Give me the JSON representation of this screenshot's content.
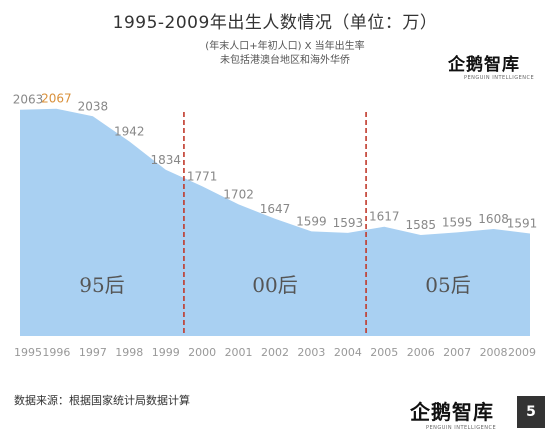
{
  "title": "1995-2009年出生人数情况（单位：万）",
  "subtitle_lines": [
    "(年末人口+年初人口) X 当年出生率",
    "未包括港澳台地区和海外华侨"
  ],
  "logo": {
    "text": "企鹅智库",
    "sub": "PENGUIN INTELLIGENCE"
  },
  "source": "数据来源：根据国家统计局数据计算",
  "page_number": "5",
  "colors": {
    "area": "#a9d0f2",
    "divider": "#c0392b",
    "label": "#888888",
    "highlight": "#d9903a"
  },
  "chart_data": {
    "type": "area",
    "x": [
      "1995",
      "1996",
      "1997",
      "1998",
      "1999",
      "2000",
      "2001",
      "2002",
      "2003",
      "2004",
      "2005",
      "2006",
      "2007",
      "2008",
      "2009"
    ],
    "values": [
      2063,
      2067,
      2038,
      1942,
      1834,
      1771,
      1702,
      1647,
      1599,
      1593,
      1617,
      1585,
      1595,
      1608,
      1591
    ],
    "data_labels": [
      "2063",
      "2067",
      "2038",
      "1942",
      "1834",
      "1771",
      "1702",
      "1647",
      "1599",
      "1593",
      "1617",
      "1585",
      "1595",
      "1608",
      "1591"
    ],
    "highlight_index": 1,
    "ylim": [
      0,
      2100
    ],
    "grid": false,
    "dividers": [
      {
        "after": "1999",
        "before": "2000"
      },
      {
        "after": "2004",
        "before": "2005"
      }
    ],
    "region_labels": [
      "95后",
      "00后",
      "05后"
    ]
  }
}
